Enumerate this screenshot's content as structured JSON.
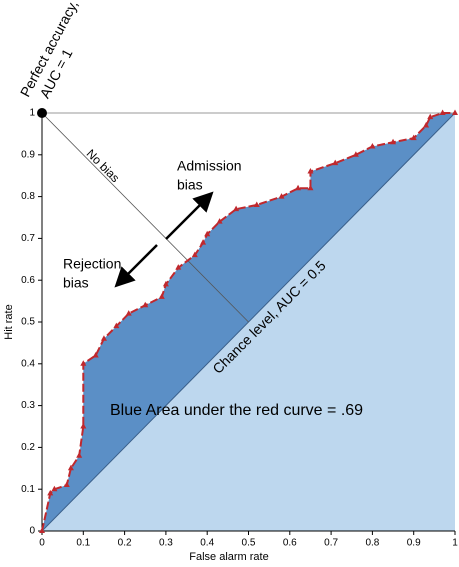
{
  "chart_data": {
    "type": "line",
    "x": [
      0,
      0.02,
      0.03,
      0.06,
      0.07,
      0.09,
      0.1,
      0.1,
      0.13,
      0.15,
      0.18,
      0.21,
      0.25,
      0.29,
      0.3,
      0.33,
      0.37,
      0.39,
      0.4,
      0.43,
      0.47,
      0.52,
      0.58,
      0.62,
      0.65,
      0.65,
      0.71,
      0.76,
      0.8,
      0.85,
      0.9,
      0.93,
      0.94,
      0.97,
      1
    ],
    "values": [
      0,
      0.09,
      0.1,
      0.11,
      0.15,
      0.18,
      0.25,
      0.4,
      0.42,
      0.46,
      0.49,
      0.52,
      0.54,
      0.56,
      0.59,
      0.63,
      0.66,
      0.69,
      0.71,
      0.74,
      0.77,
      0.78,
      0.8,
      0.82,
      0.82,
      0.86,
      0.88,
      0.9,
      0.92,
      0.93,
      0.94,
      0.97,
      0.99,
      1,
      1
    ],
    "color": "#c0282d",
    "area_color": "#5b8fc6",
    "chance_area_color": "#bdd7ee",
    "perfect_point": [
      0,
      1
    ],
    "xlim": [
      0,
      1
    ],
    "ylim": [
      0,
      1
    ],
    "xticks": [
      0,
      0.1,
      0.2,
      0.3,
      0.4,
      0.5,
      0.6,
      0.7,
      0.8,
      0.9,
      1
    ],
    "yticks": [
      0,
      0.1,
      0.2,
      0.3,
      0.4,
      0.5,
      0.6,
      0.7,
      0.8,
      0.9,
      1
    ],
    "xlabel": "False alarm rate",
    "ylabel": "Hit rate",
    "annotations": {
      "perfect": [
        "Perfect accuracy,",
        "AUC = 1"
      ],
      "no_bias": "No bias",
      "admission": [
        "Admission",
        "bias"
      ],
      "rejection": [
        "Rejection",
        "bias"
      ],
      "chance": "Chance level, AUC = 0.5",
      "area": "Blue Area under the red curve = .69"
    }
  }
}
